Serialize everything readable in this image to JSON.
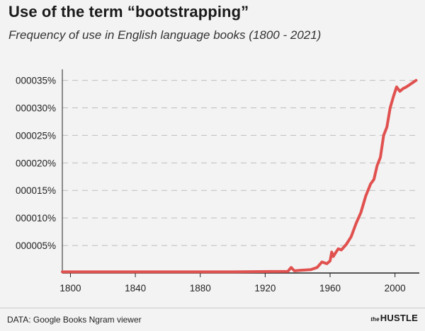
{
  "chart_data": {
    "type": "line",
    "title": "Use of the term “bootstrapping”",
    "subtitle": "Frequency of use in English language books (1800 - 2021)",
    "xlabel": "",
    "ylabel": "",
    "xlim": [
      1795,
      2015
    ],
    "ylim": [
      0,
      3.7e-06
    ],
    "x_ticks": [
      1800,
      1840,
      1880,
      1920,
      1960,
      2000
    ],
    "y_ticks": [
      {
        "value": 5e-07,
        "label": "000005%"
      },
      {
        "value": 1e-06,
        "label": "000010%"
      },
      {
        "value": 1.5e-06,
        "label": "000015%"
      },
      {
        "value": 2e-06,
        "label": "000020%"
      },
      {
        "value": 2.5e-06,
        "label": "000025%"
      },
      {
        "value": 3e-06,
        "label": "000030%"
      },
      {
        "value": 3.5e-06,
        "label": "000035%"
      }
    ],
    "grid": "horizontal-dashed",
    "line_color": "#e0514f",
    "series": [
      {
        "name": "",
        "x": [
          1795,
          1900,
          1934,
          1936,
          1938,
          1942,
          1948,
          1952,
          1955,
          1958,
          1960,
          1961,
          1962,
          1963,
          1965,
          1967,
          1970,
          1973,
          1976,
          1979,
          1982,
          1985,
          1987,
          1989,
          1991,
          1993,
          1995,
          1997,
          1999,
          2001,
          2003,
          2005,
          2007,
          2009,
          2011,
          2013
        ],
        "y": [
          2e-08,
          2e-08,
          3e-08,
          1e-07,
          4e-08,
          5e-08,
          6e-08,
          1e-07,
          2e-07,
          1.7e-07,
          2.2e-07,
          3.8e-07,
          3e-07,
          3.5e-07,
          4.4e-07,
          4.2e-07,
          5.2e-07,
          6.6e-07,
          9e-07,
          1.1e-06,
          1.4e-06,
          1.62e-06,
          1.7e-06,
          1.95e-06,
          2.1e-06,
          2.5e-06,
          2.65e-06,
          3e-06,
          3.2e-06,
          3.38e-06,
          3.3e-06,
          3.35e-06,
          3.38e-06,
          3.42e-06,
          3.46e-06,
          3.5e-06
        ]
      }
    ]
  },
  "footer": {
    "source": "DATA: Google Books Ngram viewer",
    "brand_prefix": "the",
    "brand_name": "HUSTLE"
  }
}
